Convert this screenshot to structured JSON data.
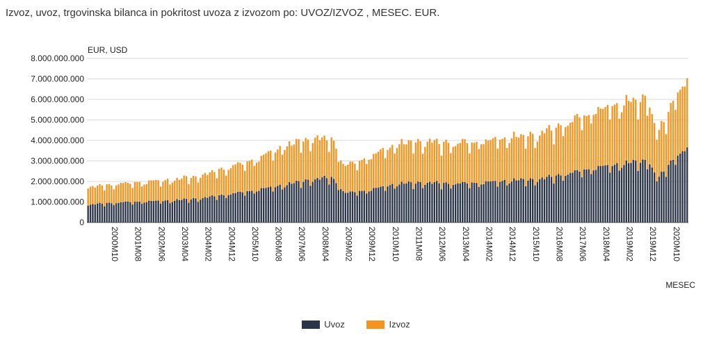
{
  "title": "Izvoz, uvoz, trgovinska bilanca in pokritost uvoza z izvozom po: UVOZ/IZVOZ ,  MESEC. EUR.",
  "chart_data": {
    "type": "bar",
    "stacked": true,
    "ylabel": "EUR, USD",
    "xlabel": "MESEC",
    "ylim": [
      0,
      8000000000
    ],
    "yticks": [
      0,
      1000000000,
      2000000000,
      3000000000,
      4000000000,
      5000000000,
      6000000000,
      7000000000,
      8000000000
    ],
    "ytick_labels": [
      "0",
      "1.000.000.000",
      "2.000.000.000",
      "3.000.000.000",
      "4.000.000.000",
      "5.000.000.000",
      "6.000.000.000",
      "7.000.000.000",
      "8.000.000.000"
    ],
    "grid": true,
    "legend_position": "bottom",
    "x_start": "2000M01",
    "x_end": "2021M05",
    "xtick_labels": [
      "2000M10",
      "2001M08",
      "2002M06",
      "2003M04",
      "2004M02",
      "2004M12",
      "2005M10",
      "2006M08",
      "2007M06",
      "2008M04",
      "2009M02",
      "2009M12",
      "2010M10",
      "2011M08",
      "2012M06",
      "2013M04",
      "2014M02",
      "2014M12",
      "2015M10",
      "2016M08",
      "2017M06",
      "2018M04",
      "2019M02",
      "2019M12",
      "2020M10"
    ],
    "series_anchors": [
      {
        "name": "Uvoz",
        "color": "#2b3548",
        "values": [
          [
            "2000M01",
            850000000
          ],
          [
            "2001M01",
            950000000
          ],
          [
            "2002M01",
            1000000000
          ],
          [
            "2003M01",
            1050000000
          ],
          [
            "2004M01",
            1150000000
          ],
          [
            "2005M01",
            1350000000
          ],
          [
            "2006M01",
            1550000000
          ],
          [
            "2007M01",
            1800000000
          ],
          [
            "2008M01",
            2050000000
          ],
          [
            "2008M09",
            2150000000
          ],
          [
            "2009M03",
            1400000000
          ],
          [
            "2010M01",
            1550000000
          ],
          [
            "2011M01",
            1850000000
          ],
          [
            "2012M01",
            1900000000
          ],
          [
            "2013M01",
            1850000000
          ],
          [
            "2014M01",
            1900000000
          ],
          [
            "2015M01",
            2000000000
          ],
          [
            "2016M01",
            2050000000
          ],
          [
            "2017M01",
            2300000000
          ],
          [
            "2018M01",
            2600000000
          ],
          [
            "2019M01",
            2800000000
          ],
          [
            "2020M01",
            2950000000
          ],
          [
            "2020M04",
            2000000000
          ],
          [
            "2021M01",
            3300000000
          ],
          [
            "2021M05",
            3450000000
          ]
        ]
      },
      {
        "name": "Izvoz",
        "color": "#f7941d",
        "values": [
          [
            "2000M01",
            850000000
          ],
          [
            "2001M01",
            900000000
          ],
          [
            "2002M01",
            950000000
          ],
          [
            "2003M01",
            1000000000
          ],
          [
            "2004M01",
            1100000000
          ],
          [
            "2005M01",
            1300000000
          ],
          [
            "2006M01",
            1500000000
          ],
          [
            "2007M01",
            1900000000
          ],
          [
            "2008M01",
            2000000000
          ],
          [
            "2008M09",
            1850000000
          ],
          [
            "2009M03",
            1300000000
          ],
          [
            "2010M01",
            1600000000
          ],
          [
            "2011M01",
            1950000000
          ],
          [
            "2012M01",
            2000000000
          ],
          [
            "2013M01",
            1950000000
          ],
          [
            "2014M01",
            2000000000
          ],
          [
            "2015M01",
            2100000000
          ],
          [
            "2016M01",
            2150000000
          ],
          [
            "2017M01",
            2450000000
          ],
          [
            "2018M01",
            2750000000
          ],
          [
            "2019M01",
            2950000000
          ],
          [
            "2020M01",
            3000000000
          ],
          [
            "2020M04",
            2050000000
          ],
          [
            "2021M01",
            3100000000
          ],
          [
            "2021M05",
            3300000000
          ]
        ]
      }
    ]
  }
}
